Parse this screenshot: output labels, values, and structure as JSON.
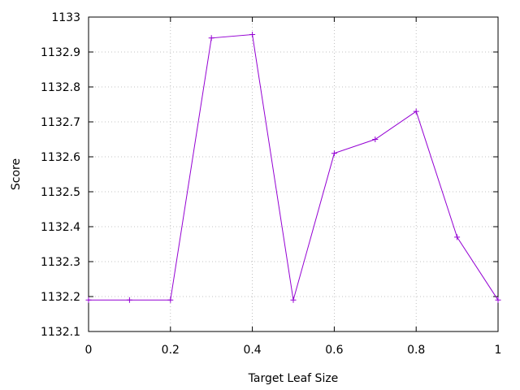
{
  "chart_data": {
    "type": "line",
    "title": "",
    "xlabel": "Target Leaf Size",
    "ylabel": "Score",
    "xlim": [
      0,
      1
    ],
    "ylim": [
      1132.1,
      1133
    ],
    "x_ticks": [
      "0",
      "0.2",
      "0.4",
      "0.6",
      "0.8",
      "1"
    ],
    "y_ticks": [
      "1132.1",
      "1132.2",
      "1132.3",
      "1132.4",
      "1132.5",
      "1132.6",
      "1132.7",
      "1132.8",
      "1132.9",
      "1133"
    ],
    "grid": true,
    "legend": "none",
    "series": [
      {
        "color": "#9400d3",
        "marker": "plus",
        "x": [
          0,
          0.1,
          0.2,
          0.3,
          0.4,
          0.5,
          0.6,
          0.7,
          0.8,
          0.9,
          1.0
        ],
        "y": [
          1132.19,
          1132.19,
          1132.19,
          1132.94,
          1132.95,
          1132.19,
          1132.61,
          1132.65,
          1132.73,
          1132.37,
          1132.19
        ]
      }
    ]
  }
}
